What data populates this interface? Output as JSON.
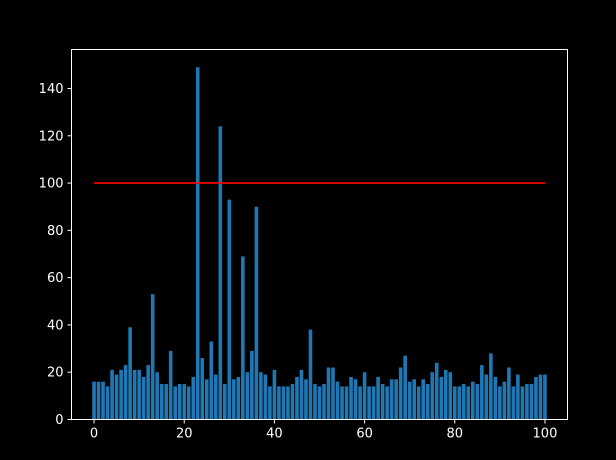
{
  "chart_data": {
    "type": "bar",
    "title": "",
    "xlabel": "",
    "ylabel": "",
    "x": [
      0,
      1,
      2,
      3,
      4,
      5,
      6,
      7,
      8,
      9,
      10,
      11,
      12,
      13,
      14,
      15,
      16,
      17,
      18,
      19,
      20,
      21,
      22,
      23,
      24,
      25,
      26,
      27,
      28,
      29,
      30,
      31,
      32,
      33,
      34,
      35,
      36,
      37,
      38,
      39,
      40,
      41,
      42,
      43,
      44,
      45,
      46,
      47,
      48,
      49,
      50,
      51,
      52,
      53,
      54,
      55,
      56,
      57,
      58,
      59,
      60,
      61,
      62,
      63,
      64,
      65,
      66,
      67,
      68,
      69,
      70,
      71,
      72,
      73,
      74,
      75,
      76,
      77,
      78,
      79,
      80,
      81,
      82,
      83,
      84,
      85,
      86,
      87,
      88,
      89,
      90,
      91,
      92,
      93,
      94,
      95,
      96,
      97,
      98,
      99,
      100
    ],
    "values": [
      16,
      16,
      16,
      14,
      21,
      19,
      21,
      23,
      39,
      21,
      21,
      18,
      23,
      53,
      20,
      15,
      15,
      29,
      14,
      15,
      15,
      14,
      18,
      149,
      26,
      17,
      33,
      19,
      124,
      15,
      93,
      17,
      18,
      69,
      20,
      29,
      90,
      20,
      19,
      14,
      21,
      14,
      14,
      14,
      15,
      18,
      21,
      17,
      38,
      15,
      14,
      15,
      22,
      22,
      16,
      14,
      14,
      18,
      17,
      14,
      20,
      14,
      14,
      18,
      15,
      14,
      17,
      17,
      22,
      27,
      16,
      17,
      14,
      17,
      15,
      20,
      24,
      18,
      21,
      20,
      14,
      14,
      15,
      14,
      16,
      15,
      23,
      19,
      28,
      18,
      14,
      16,
      22,
      14,
      19,
      14,
      15,
      15,
      18,
      19,
      19
    ],
    "xlim": [
      -5,
      105
    ],
    "ylim": [
      0,
      156.5
    ],
    "xticks": [
      0,
      20,
      40,
      60,
      80,
      100
    ],
    "yticks": [
      0,
      20,
      40,
      60,
      80,
      100,
      120,
      140
    ],
    "bar_width": 0.8,
    "reference_line": {
      "y": 100,
      "x_start": 0,
      "x_end": 100,
      "color": "#ff0000"
    },
    "bar_color": "#1f77b4",
    "axis_color": "#ffffff",
    "grid": false,
    "legend": "none"
  }
}
